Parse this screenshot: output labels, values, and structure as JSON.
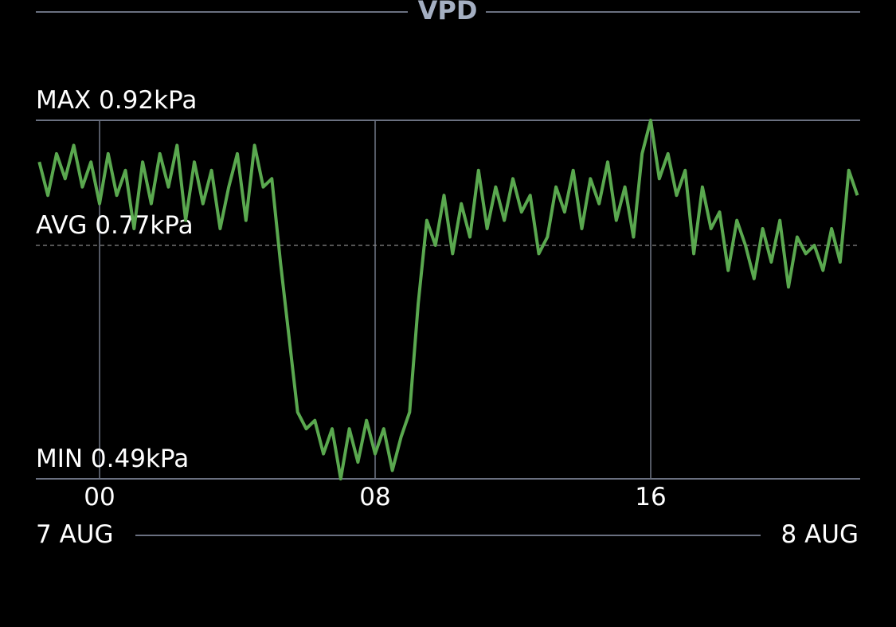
{
  "chart_data": {
    "type": "line",
    "title": "VPD",
    "x": [
      -1.75,
      -1.5,
      -1.25,
      -1.0,
      -0.75,
      -0.5,
      -0.25,
      0,
      0.25,
      0.5,
      0.75,
      1.0,
      1.25,
      1.5,
      1.75,
      2.0,
      2.25,
      2.5,
      2.75,
      3.0,
      3.25,
      3.5,
      3.75,
      4.0,
      4.25,
      4.5,
      4.75,
      5.0,
      5.25,
      5.5,
      5.75,
      6.0,
      6.25,
      6.5,
      6.75,
      7.0,
      7.25,
      7.5,
      7.75,
      8.0,
      8.25,
      8.5,
      8.75,
      9.0,
      9.25,
      9.5,
      9.75,
      10.0,
      10.25,
      10.5,
      10.75,
      11.0,
      11.25,
      11.5,
      11.75,
      12.0,
      12.25,
      12.5,
      12.75,
      13.0,
      13.25,
      13.5,
      13.75,
      14.0,
      14.25,
      14.5,
      14.75,
      15.0,
      15.25,
      15.5,
      15.75,
      16.0,
      16.25,
      16.5,
      16.75,
      17.0,
      17.25,
      17.5,
      17.75,
      18.0,
      18.25,
      18.5,
      18.75,
      19.0,
      19.25,
      19.5,
      19.75,
      20.0,
      20.25,
      20.5,
      20.75,
      21.0,
      21.25,
      21.5,
      21.75,
      22.0
    ],
    "series": [
      {
        "color": "#5aa84f",
        "values": [
          0.87,
          0.83,
          0.88,
          0.85,
          0.89,
          0.84,
          0.87,
          0.82,
          0.88,
          0.83,
          0.86,
          0.79,
          0.87,
          0.82,
          0.88,
          0.84,
          0.89,
          0.8,
          0.87,
          0.82,
          0.86,
          0.79,
          0.84,
          0.88,
          0.8,
          0.89,
          0.84,
          0.85,
          0.75,
          0.66,
          0.57,
          0.55,
          0.56,
          0.52,
          0.55,
          0.49,
          0.55,
          0.51,
          0.56,
          0.52,
          0.55,
          0.5,
          0.54,
          0.57,
          0.7,
          0.8,
          0.77,
          0.83,
          0.76,
          0.82,
          0.78,
          0.86,
          0.79,
          0.84,
          0.8,
          0.85,
          0.81,
          0.83,
          0.76,
          0.78,
          0.84,
          0.81,
          0.86,
          0.79,
          0.85,
          0.82,
          0.87,
          0.8,
          0.84,
          0.78,
          0.88,
          0.92,
          0.85,
          0.88,
          0.83,
          0.86,
          0.76,
          0.84,
          0.79,
          0.81,
          0.74,
          0.8,
          0.77,
          0.73,
          0.79,
          0.75,
          0.8,
          0.72,
          0.78,
          0.76,
          0.77,
          0.74,
          0.79,
          0.75,
          0.86,
          0.83
        ]
      }
    ],
    "xlim": [
      -1.85,
      22.08
    ],
    "xticks": [
      {
        "value": 0,
        "label": "00"
      },
      {
        "value": 8,
        "label": "08"
      },
      16
    ],
    "ylim": [
      0.49,
      0.92
    ],
    "yticks": [
      {
        "value": 0.92,
        "label": "MAX 0.92kPa"
      },
      {
        "value": 0.77,
        "label": "AVG 0.77kPa"
      },
      {
        "value": 0.49,
        "label": "MIN 0.49kPa"
      }
    ],
    "date_labels": [
      "7 AUG",
      "8 AUG"
    ]
  }
}
